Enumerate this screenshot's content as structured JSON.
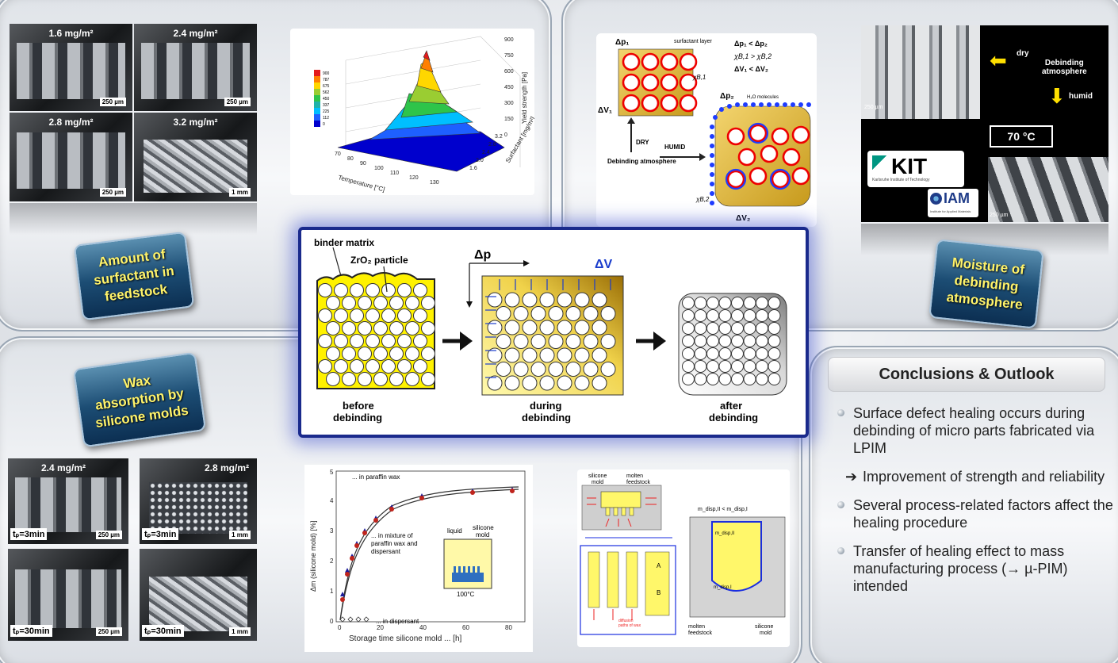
{
  "top_left": {
    "sem_labels": [
      "1.6 mg/m²",
      "2.4 mg/m²",
      "2.8 mg/m²",
      "3.2 mg/m²"
    ],
    "sem_scales": [
      "250 µm",
      "250 µm",
      "250 µm",
      "1 mm"
    ],
    "badge": "Amount of\nsurfactant in\nfeedstock",
    "chart": {
      "color_levels": [
        "900",
        "787",
        "675",
        "562",
        "450",
        "337",
        "225",
        "112",
        "0"
      ],
      "x_ticks": [
        "70",
        "80",
        "90",
        "100",
        "110",
        "120",
        "130"
      ],
      "x_label": "Temperature [°C]",
      "y_ticks": [
        "1.6",
        "2.0",
        "2.4",
        "2.8",
        "3.2"
      ],
      "y_label": "Surfactant [mg/m²]",
      "z_ticks": [
        "900",
        "750",
        "600",
        "450",
        "300",
        "150",
        "0"
      ],
      "z_label": "Yield strength [Pa]"
    }
  },
  "top_right": {
    "badge": "Moisture of\ndebinding\natmosphere",
    "schematic": {
      "p1": "Δp₁",
      "v1": "ΔV₁",
      "p2": "Δp₂",
      "v2": "ΔV₂",
      "surfactant_layer": "surfactant\nlayer",
      "h2o": "H₂O molecules",
      "dry": "DRY",
      "humid": "HUMID",
      "debinding_atmosphere": "Debinding\natmosphere",
      "chi1": "χB,1",
      "chi2": "χB,2",
      "eq1": "Δp₁ < Δp₂",
      "eq2": "χB,1 > χB,2",
      "eq3": "ΔV₁ < ΔV₂"
    },
    "photo": {
      "dry": "dry",
      "debinding_atmosphere": "Debinding\natmosphere",
      "humid": "humid",
      "temp": "70 °C",
      "scale1": "250 µm",
      "scale2": "250 µm",
      "kit_logo": "KIT",
      "kit_sub": "Karlsruhe Institute of Technology",
      "iam_logo": "IAM",
      "iam_sub": "Institute for Applied Materials"
    }
  },
  "center": {
    "binder_matrix": "binder matrix",
    "zro2": "ZrO₂ particle",
    "dp": "Δp",
    "dv": "ΔV",
    "before": "before\ndebinding",
    "during": "during\ndebinding",
    "after": "after\ndebinding"
  },
  "bottom_left": {
    "badge": "Wax\nabsorption by\nsilicone molds",
    "sem_labels": [
      "2.4 mg/m²",
      "2.8 mg/m²"
    ],
    "tp_labels": [
      "tₚ=3min",
      "tₚ=3min",
      "tₚ=30min",
      "tₚ=30min"
    ],
    "sem_scales": [
      "250 µm",
      "1 mm",
      "250 µm",
      "1 mm"
    ],
    "chart": {
      "x_label": "Storage time silicone mold ... [h]",
      "y_label": "Δm (silicone mold) [%]",
      "x_ticks": [
        "0",
        "20",
        "40",
        "60",
        "80"
      ],
      "y_ticks": [
        "0",
        "1",
        "2",
        "3",
        "4",
        "5"
      ],
      "ann_paraffin": "... in paraffin wax",
      "ann_mixture": "... in mixture of\nparaffin wax and\ndispersant",
      "ann_dispersant": "... in dispersant",
      "inset_liquid": "liquid",
      "inset_mold": "silicone\nmold",
      "inset_temp": "100°C"
    },
    "schematic": {
      "silicone_mold": "silicone\nmold",
      "molten_feedstock": "molten\nfeedstock",
      "m_disp_relation": "m_disp,II < m_disp,I",
      "m_disp_ii": "m_disp,II",
      "m_disp_i": "m_disp,I",
      "a": "A",
      "b": "B",
      "diffusion": "diffusion\npaths of wax",
      "molten_feedstock2": "molten\nfeedstock",
      "silicone_mold2": "silicone\nmold"
    }
  },
  "conclusions": {
    "title": "Conclusions & Outlook",
    "items": [
      "Surface defect healing occurs during debinding of micro parts fabricated via LPIM",
      "Improvement of strength and reliability",
      "Several process-related factors affect the healing procedure",
      "Transfer of healing effect to mass manufacturing process (→ µ-PIM) intended"
    ],
    "arrow": "➔"
  }
}
